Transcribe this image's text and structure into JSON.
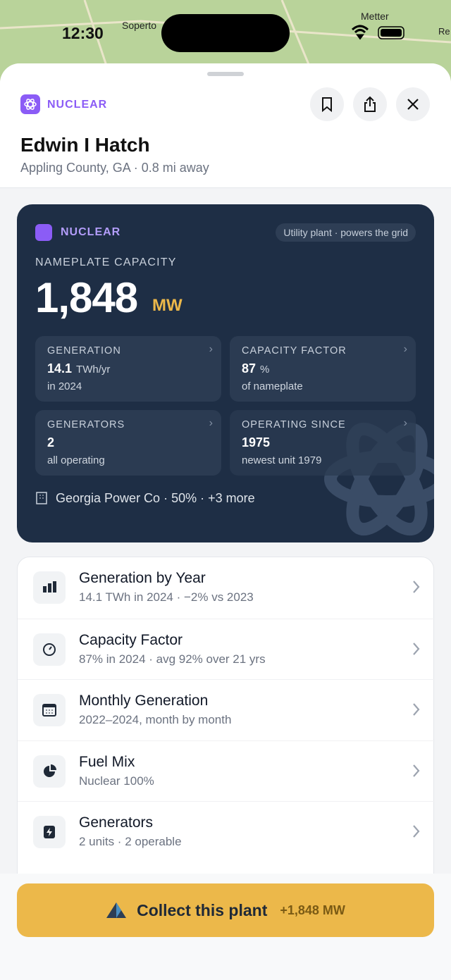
{
  "status_bar": {
    "time": "12:30",
    "map_labels": [
      "Soperto",
      "Metter",
      "Re"
    ]
  },
  "header": {
    "category": "NUCLEAR",
    "title": "Edwin I Hatch",
    "subtitle": "Appling County, GA · 0.8 mi away"
  },
  "card": {
    "category": "NUCLEAR",
    "badge": "Utility plant · powers the grid",
    "capacity_label": "NAMEPLATE CAPACITY",
    "capacity": "1,848",
    "capacity_unit": "MW",
    "stats": [
      {
        "label": "GENERATION",
        "value": "14.1",
        "unit": "TWh/yr",
        "note": "in 2024"
      },
      {
        "label": "CAPACITY FACTOR",
        "value": "87",
        "unit": "%",
        "note": "of nameplate"
      },
      {
        "label": "GENERATORS",
        "value": "2",
        "note": "all operating"
      },
      {
        "label": "OPERATING SINCE",
        "value": "1975",
        "note": "newest unit 1979"
      }
    ],
    "owner": "Georgia Power Co · 50% · +3 more"
  },
  "menu": [
    {
      "title": "Generation by Year",
      "subtitle": "14.1 TWh in 2024 · −2% vs 2023"
    },
    {
      "title": "Capacity Factor",
      "subtitle": "87% in 2024 · avg 92% over 21 yrs"
    },
    {
      "title": "Monthly Generation",
      "subtitle": "2022–2024, month by month"
    },
    {
      "title": "Fuel Mix",
      "subtitle": "Nuclear 100%"
    },
    {
      "title": "Generators",
      "subtitle": "2 units · 2 operable"
    }
  ],
  "cta": {
    "label": "Collect this plant",
    "bonus": "+1,848 MW"
  }
}
